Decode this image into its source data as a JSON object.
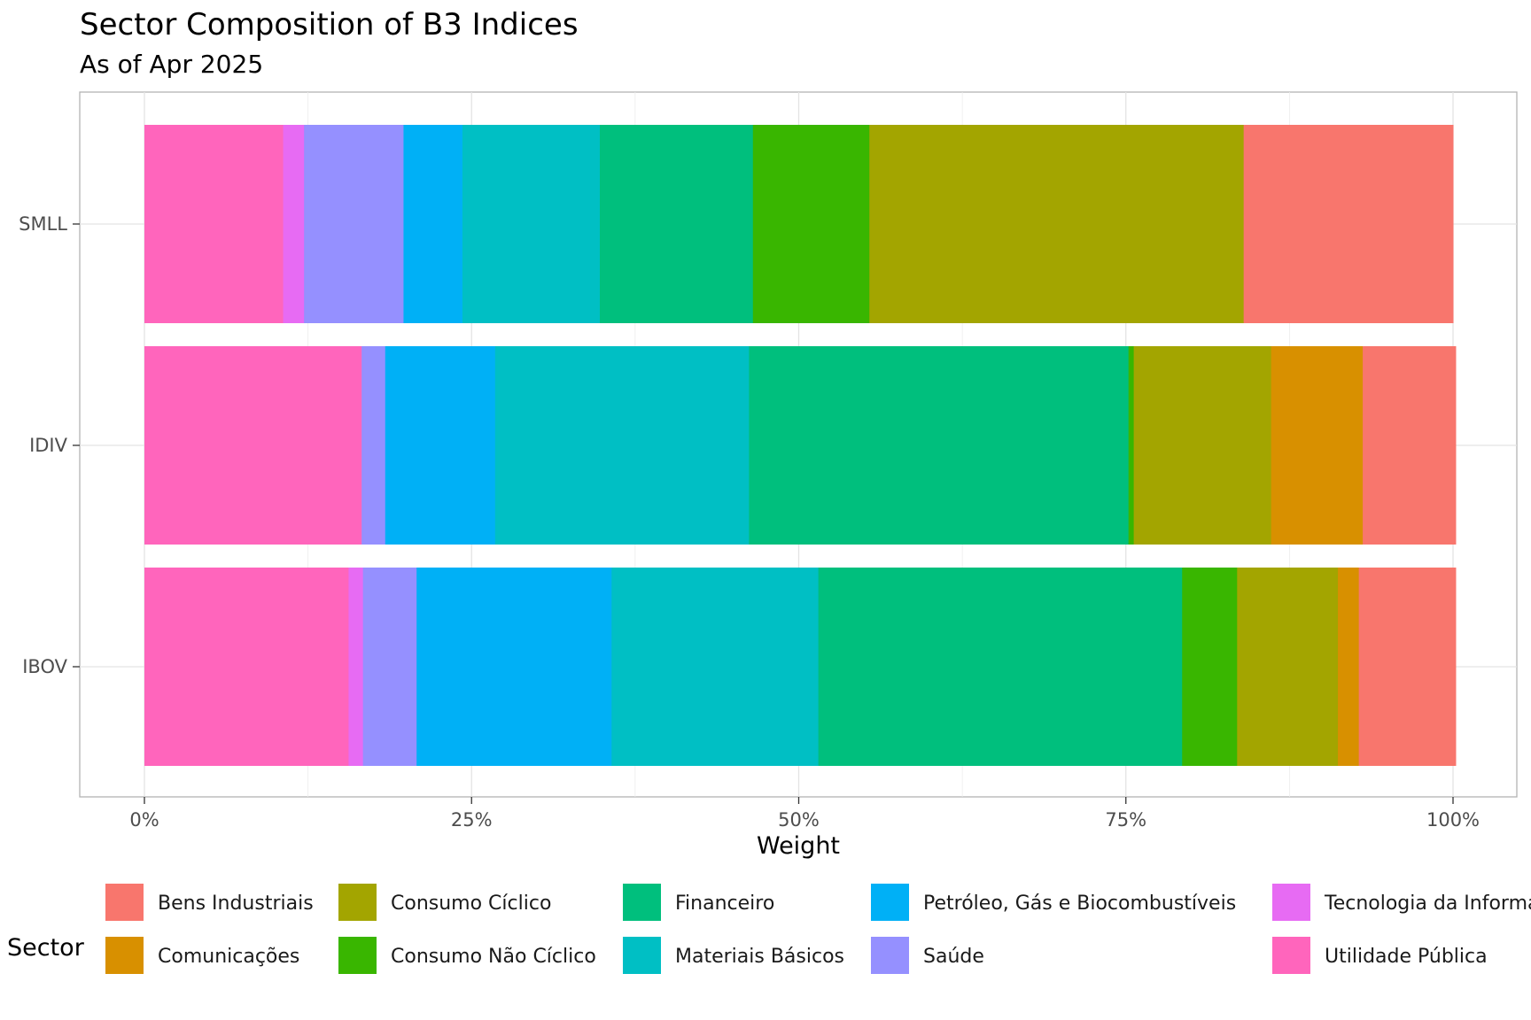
{
  "chart_data": {
    "type": "bar",
    "orientation": "horizontal",
    "stacked": true,
    "title": "Sector Composition of B3 Indices",
    "subtitle": "As of Apr 2025",
    "xlabel": "Weight",
    "ylabel": "",
    "xlim": [
      0,
      1
    ],
    "x_ticks": [
      {
        "value": 0,
        "label": "0%"
      },
      {
        "value": 0.25,
        "label": "25%"
      },
      {
        "value": 0.5,
        "label": "50%"
      },
      {
        "value": 0.75,
        "label": "75%"
      },
      {
        "value": 1,
        "label": "100%"
      }
    ],
    "categories": [
      "SMLL",
      "IDIV",
      "IBOV"
    ],
    "legend_title": "Sector",
    "legend_position": "bottom",
    "series": [
      {
        "name": "Utilidade Pública",
        "color": "#FF65BC",
        "values": [
          0.106,
          0.166,
          0.156
        ]
      },
      {
        "name": "Tecnologia da Informação",
        "color": "#E76BF3",
        "values": [
          0.016,
          0.0,
          0.011
        ]
      },
      {
        "name": "Saúde",
        "color": "#9590FF",
        "values": [
          0.076,
          0.018,
          0.041
        ]
      },
      {
        "name": "Petróleo, Gás e Biocombustíveis",
        "color": "#00B0F6",
        "values": [
          0.045,
          0.084,
          0.149
        ]
      },
      {
        "name": "Materiais Básicos",
        "color": "#00BFC4",
        "values": [
          0.105,
          0.194,
          0.158
        ]
      },
      {
        "name": "Financeiro",
        "color": "#00BF7D",
        "values": [
          0.117,
          0.29,
          0.278
        ]
      },
      {
        "name": "Consumo Não Cíclico",
        "color": "#39B600",
        "values": [
          0.089,
          0.004,
          0.042
        ]
      },
      {
        "name": "Consumo Cíclico",
        "color": "#A3A500",
        "values": [
          0.286,
          0.105,
          0.077
        ]
      },
      {
        "name": "Comunicações",
        "color": "#D89000",
        "values": [
          0.0,
          0.07,
          0.016
        ]
      },
      {
        "name": "Bens Industriais",
        "color": "#F8766D",
        "values": [
          0.16,
          0.071,
          0.074
        ]
      }
    ],
    "legend_order": [
      "Bens Industriais",
      "Comunicações",
      "Consumo Cíclico",
      "Consumo Não Cíclico",
      "Financeiro",
      "Materiais Básicos",
      "Petróleo, Gás e Biocombustíveis",
      "Saúde",
      "Tecnologia da Informação",
      "Utilidade Pública"
    ]
  }
}
